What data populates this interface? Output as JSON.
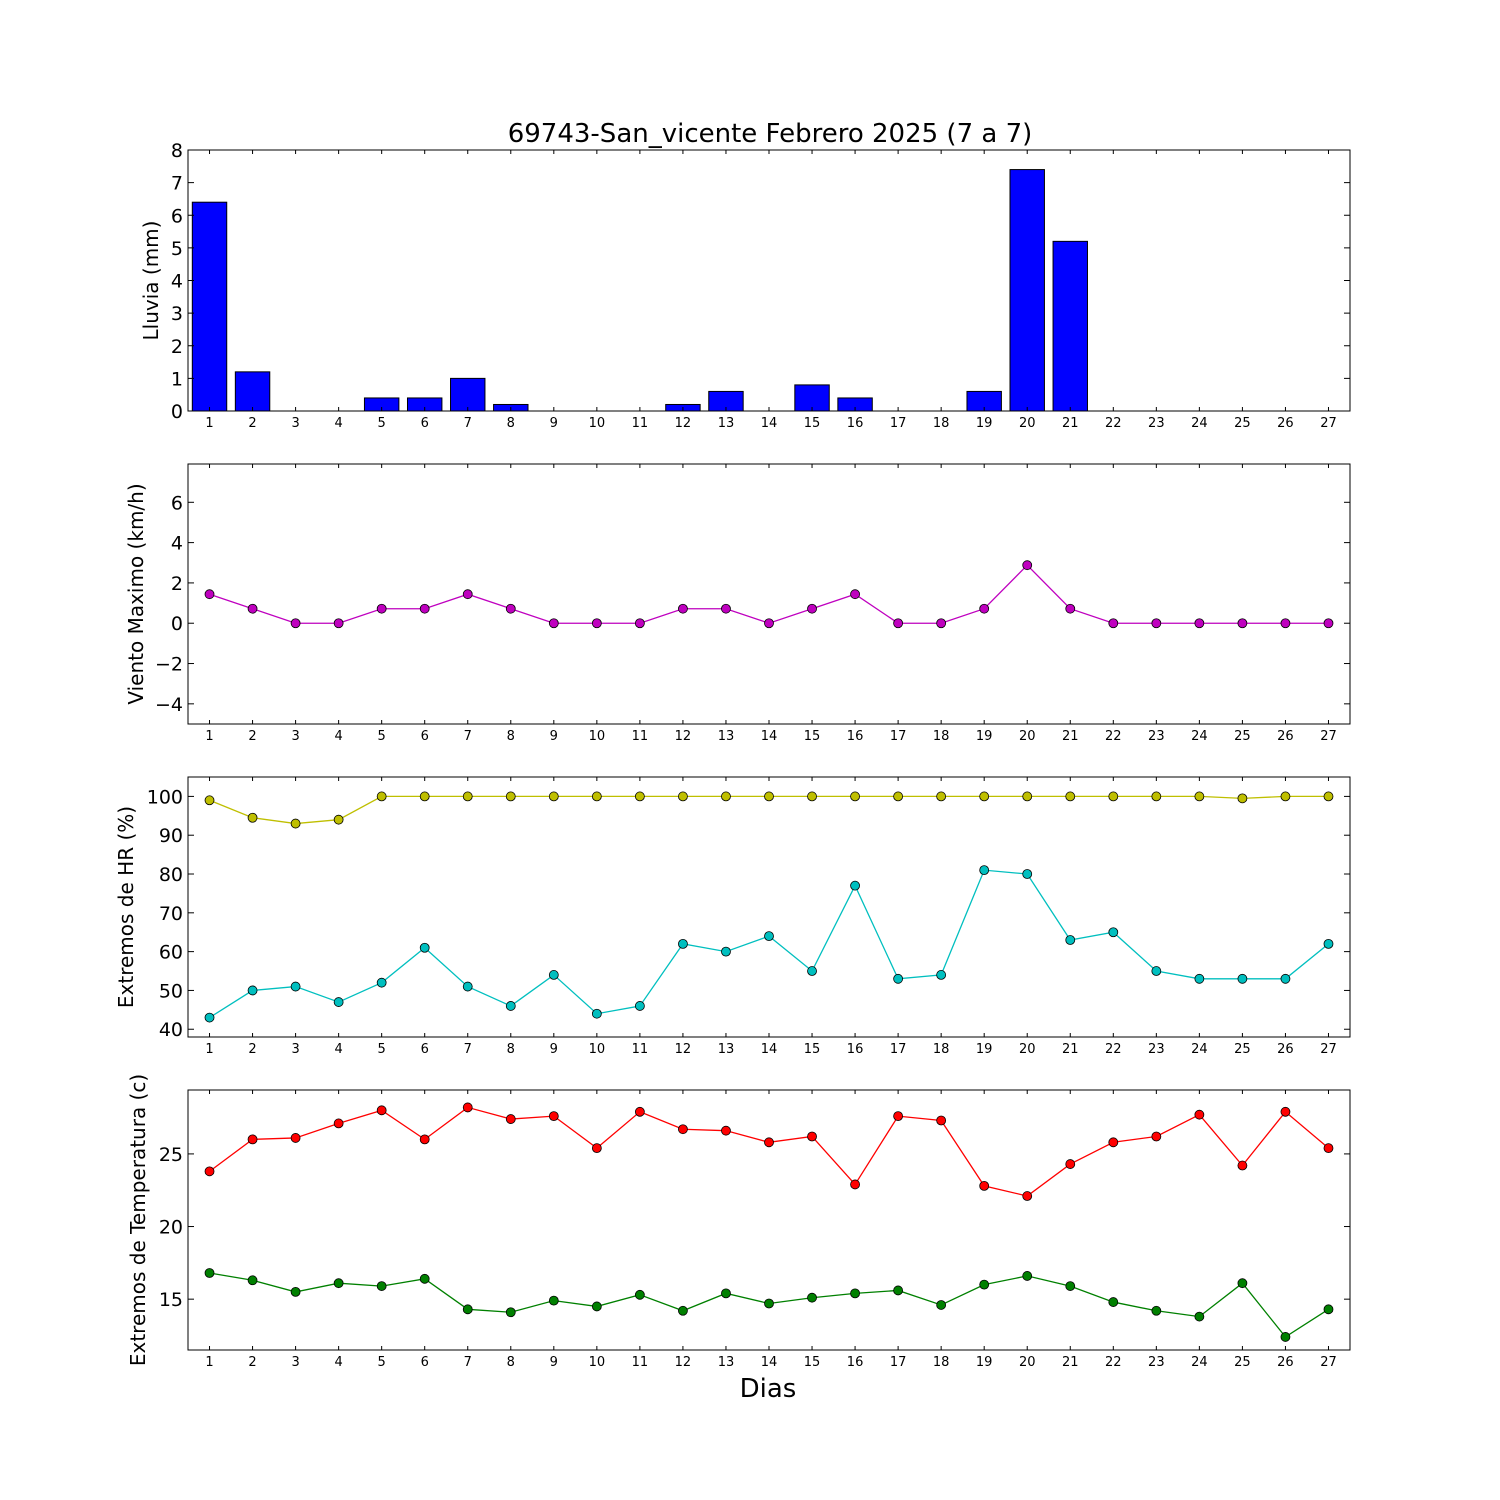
{
  "figure": {
    "title": "69743-San_vicente Febrero 2025  (7 a 7)",
    "xlabel": "Dias"
  },
  "chart_data": [
    {
      "type": "bar",
      "ylabel": "Lluvia (mm)",
      "categories": [
        1,
        2,
        3,
        4,
        5,
        6,
        7,
        8,
        9,
        10,
        11,
        12,
        13,
        14,
        15,
        16,
        17,
        18,
        19,
        20,
        21,
        22,
        23,
        24,
        25,
        26,
        27
      ],
      "ylim": [
        0,
        8
      ],
      "yticks": [
        0,
        1,
        2,
        3,
        4,
        5,
        6,
        7,
        8
      ],
      "series": [
        {
          "color": "#0000ff",
          "values": [
            6.4,
            1.2,
            0,
            0,
            0.4,
            0.4,
            1.0,
            0.2,
            0,
            0,
            0,
            0.2,
            0.6,
            0,
            0.8,
            0.4,
            0,
            0,
            0.6,
            7.4,
            5.2,
            0,
            0,
            0,
            0,
            0,
            0
          ]
        }
      ]
    },
    {
      "type": "line",
      "ylabel": "Viento Maximo (km/h)",
      "categories": [
        1,
        2,
        3,
        4,
        5,
        6,
        7,
        8,
        9,
        10,
        11,
        12,
        13,
        14,
        15,
        16,
        17,
        18,
        19,
        20,
        21,
        22,
        23,
        24,
        25,
        26,
        27
      ],
      "ylim": [
        -5,
        7.9
      ],
      "yticks": [
        -4,
        -2,
        0,
        2,
        4,
        6
      ],
      "series": [
        {
          "color": "#bf00bf",
          "values": [
            1.44,
            0.72,
            0,
            0,
            0.72,
            0.72,
            1.44,
            0.72,
            0,
            0,
            0,
            0.72,
            0.72,
            0,
            0.72,
            1.44,
            0,
            0,
            0.72,
            2.88,
            0.72,
            0,
            0,
            0,
            0,
            0,
            0
          ]
        }
      ]
    },
    {
      "type": "line",
      "ylabel": "Extremos de HR (%)",
      "categories": [
        1,
        2,
        3,
        4,
        5,
        6,
        7,
        8,
        9,
        10,
        11,
        12,
        13,
        14,
        15,
        16,
        17,
        18,
        19,
        20,
        21,
        22,
        23,
        24,
        25,
        26,
        27
      ],
      "ylim": [
        38,
        105
      ],
      "yticks": [
        40,
        50,
        60,
        70,
        80,
        90,
        100
      ],
      "series": [
        {
          "color": "#bfbf00",
          "values": [
            99,
            94.5,
            93,
            94,
            100,
            100,
            100,
            100,
            100,
            100,
            100,
            100,
            100,
            100,
            100,
            100,
            100,
            100,
            100,
            100,
            100,
            100,
            100,
            100,
            99.5,
            100,
            100
          ]
        },
        {
          "color": "#00bfbf",
          "values": [
            43,
            50,
            51,
            47,
            52,
            61,
            51,
            46,
            54,
            44,
            46,
            62,
            60,
            64,
            55,
            77,
            53,
            54,
            81,
            80,
            63,
            65,
            55,
            53,
            53,
            53,
            62
          ]
        }
      ]
    },
    {
      "type": "line",
      "ylabel": "Extremos de Temperatura (c)",
      "categories": [
        1,
        2,
        3,
        4,
        5,
        6,
        7,
        8,
        9,
        10,
        11,
        12,
        13,
        14,
        15,
        16,
        17,
        18,
        19,
        20,
        21,
        22,
        23,
        24,
        25,
        26,
        27
      ],
      "ylim": [
        11.5,
        29.4
      ],
      "yticks": [
        15,
        20,
        25
      ],
      "series": [
        {
          "color": "#ff0000",
          "values": [
            23.8,
            26.0,
            26.1,
            27.1,
            28.0,
            26.0,
            28.2,
            27.4,
            27.6,
            25.4,
            27.9,
            26.7,
            26.6,
            25.8,
            26.2,
            22.9,
            27.6,
            27.3,
            22.8,
            22.1,
            24.3,
            25.8,
            26.2,
            27.7,
            24.2,
            27.9,
            25.4
          ]
        },
        {
          "color": "#008000",
          "values": [
            16.8,
            16.3,
            15.5,
            16.1,
            15.9,
            16.4,
            14.3,
            14.1,
            14.9,
            14.5,
            15.3,
            14.2,
            15.4,
            14.7,
            15.1,
            15.4,
            15.6,
            14.6,
            16.0,
            16.6,
            15.9,
            14.8,
            14.2,
            13.8,
            16.1,
            12.4,
            14.3
          ]
        }
      ]
    }
  ]
}
